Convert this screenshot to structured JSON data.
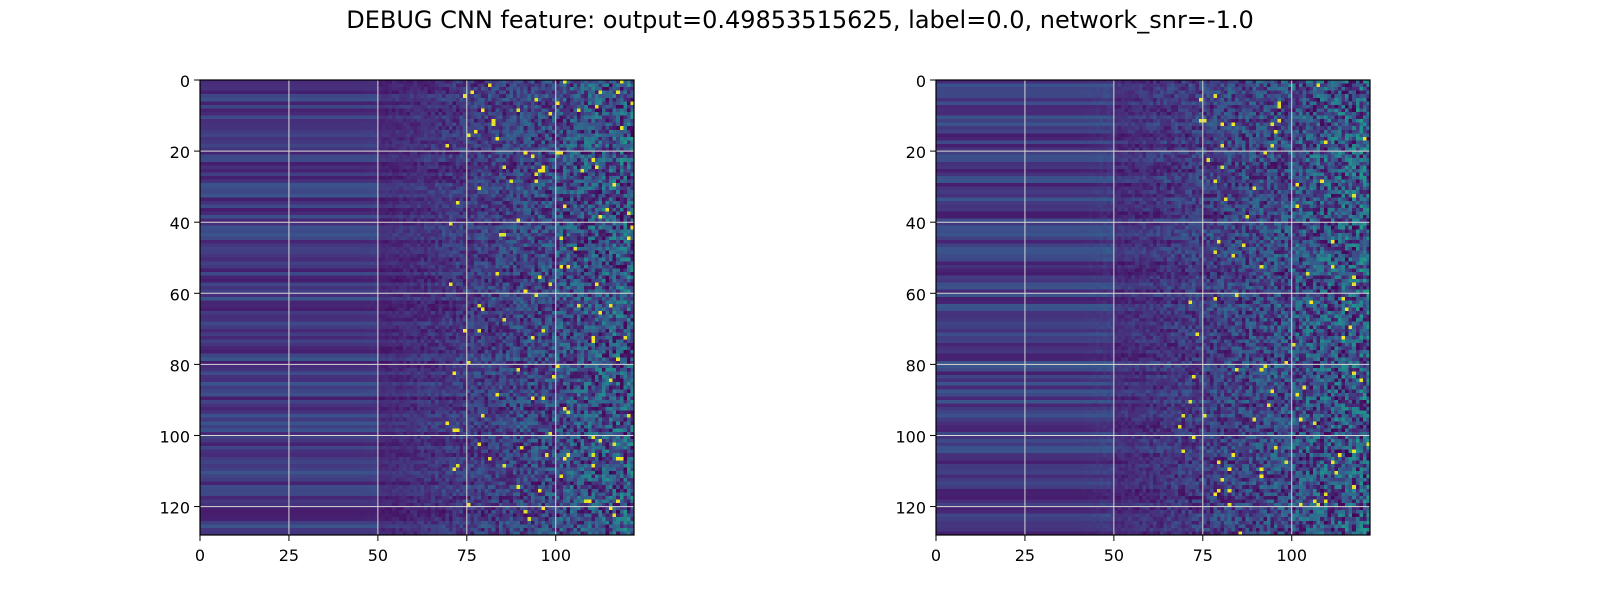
{
  "title": "DEBUG CNN feature: output=0.49853515625, label=0.0, network_snr=-1.0",
  "chart_data": [
    {
      "type": "heatmap",
      "colormap": "viridis",
      "rows": 128,
      "cols": 122,
      "x_range": [
        0,
        122
      ],
      "y_range": [
        0,
        128
      ],
      "y_inverted": true,
      "xticks": [
        0,
        25,
        50,
        75,
        100
      ],
      "yticks": [
        0,
        20,
        40,
        60,
        80,
        100,
        120
      ],
      "grid": true,
      "values_description": "dark purple (low) for columns 0-50, increasingly noisy green/yellow speckles for columns 65-122",
      "seed": 11
    },
    {
      "type": "heatmap",
      "colormap": "viridis",
      "rows": 128,
      "cols": 122,
      "x_range": [
        0,
        122
      ],
      "y_range": [
        0,
        128
      ],
      "y_inverted": true,
      "xticks": [
        0,
        25,
        50,
        75,
        100
      ],
      "yticks": [
        0,
        20,
        40,
        60,
        80,
        100,
        120
      ],
      "grid": true,
      "values_description": "dark purple (low) for columns 0-45, increasingly noisy green/yellow speckles for columns 60-122",
      "seed": 29
    }
  ]
}
